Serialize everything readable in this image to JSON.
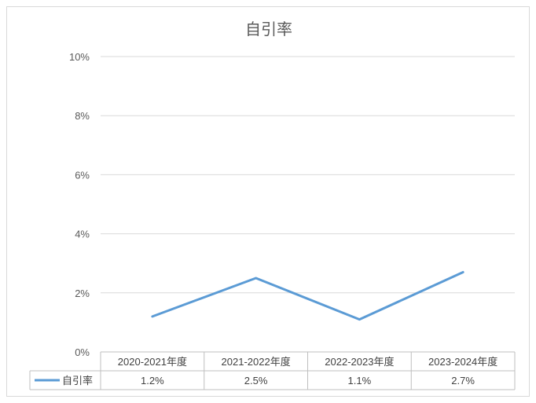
{
  "chart_data": {
    "type": "line",
    "title": "自引率",
    "categories": [
      "2020-2021年度",
      "2021-2022年度",
      "2022-2023年度",
      "2023-2024年度"
    ],
    "series": [
      {
        "name": "自引率",
        "values": [
          1.2,
          2.5,
          1.1,
          2.7
        ],
        "labels": [
          "1.2%",
          "2.5%",
          "1.1%",
          "2.7%"
        ],
        "color": "#5b9bd5"
      }
    ],
    "y_ticks": [
      "0%",
      "2%",
      "4%",
      "6%",
      "8%",
      "10%"
    ],
    "ylim": [
      0,
      10
    ],
    "grid": true,
    "legend": "data-table-left"
  }
}
